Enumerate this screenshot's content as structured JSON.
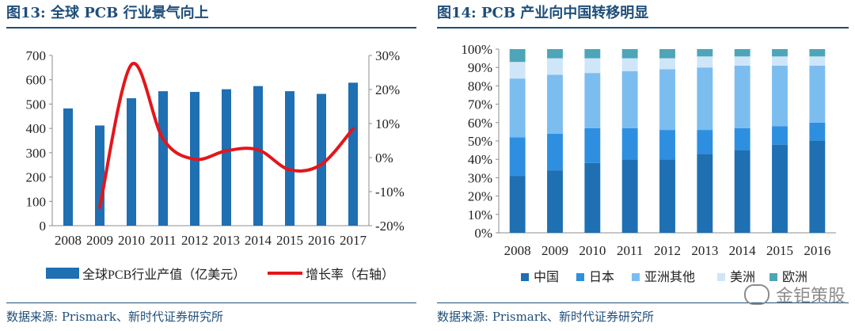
{
  "left": {
    "title": "图13:  全球 PCB 行业景气向上",
    "source": "数据来源:  Prismark、新时代证券研究所"
  },
  "right": {
    "title": "图14:  PCB 产业向中国转移明显",
    "source": "数据来源:  Prismark、新时代证券研究所"
  },
  "watermark": {
    "text": "金钜策股",
    "icon": "wechat-icon"
  },
  "colors": {
    "title": "#1f4e79",
    "bar": "#1f6fb3",
    "line": "#e3161b",
    "stack": [
      "#1f6fb3",
      "#2e8fe0",
      "#7cbdf0",
      "#cfe6f8",
      "#4ea5b9"
    ]
  },
  "chart_data": [
    {
      "type": "bar",
      "categories": [
        "2008",
        "2009",
        "2010",
        "2011",
        "2012",
        "2013",
        "2014",
        "2015",
        "2016",
        "2017"
      ],
      "series": [
        {
          "name": "全球PCB行业产值（亿美元）",
          "type": "bar",
          "axis": "left",
          "values": [
            482,
            412,
            524,
            553,
            550,
            561,
            574,
            553,
            542,
            588
          ]
        },
        {
          "name": "增长率（右轴）",
          "type": "line",
          "axis": "right",
          "values": [
            null,
            -14.6,
            27.3,
            5.5,
            -0.5,
            2.0,
            2.3,
            -3.6,
            -2.0,
            8.5
          ]
        }
      ],
      "ylim": [
        0,
        700
      ],
      "yticks": [
        0,
        100,
        200,
        300,
        400,
        500,
        600,
        700
      ],
      "y2lim": [
        -20,
        30
      ],
      "y2ticks": [
        "-20%",
        "-10%",
        "0%",
        "10%",
        "20%",
        "30%"
      ],
      "y2values": [
        -20,
        -10,
        0,
        10,
        20,
        30
      ],
      "legend_position": "bottom"
    },
    {
      "type": "bar",
      "stacked": true,
      "categories": [
        "2008",
        "2009",
        "2010",
        "2011",
        "2012",
        "2013",
        "2014",
        "2015",
        "2016"
      ],
      "series": [
        {
          "name": "中国",
          "values": [
            31,
            34,
            38,
            40,
            40,
            43,
            45,
            48,
            50
          ]
        },
        {
          "name": "日本",
          "values": [
            21,
            20,
            19,
            17,
            16,
            13,
            12,
            10,
            10
          ]
        },
        {
          "name": "亚洲其他",
          "values": [
            32,
            32,
            30,
            31,
            33,
            34,
            34,
            33,
            31
          ]
        },
        {
          "name": "美洲",
          "values": [
            9,
            9,
            8,
            7,
            6,
            6,
            5,
            5,
            5
          ]
        },
        {
          "name": "欧洲",
          "values": [
            7,
            5,
            5,
            5,
            5,
            4,
            4,
            4,
            4
          ]
        }
      ],
      "ylim": [
        0,
        100
      ],
      "yticks": [
        "0%",
        "10%",
        "20%",
        "30%",
        "40%",
        "50%",
        "60%",
        "70%",
        "80%",
        "90%",
        "100%"
      ],
      "legend_position": "bottom"
    }
  ]
}
